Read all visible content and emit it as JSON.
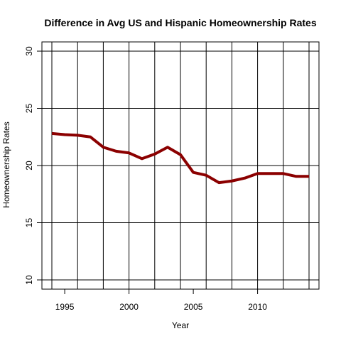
{
  "chart_data": {
    "type": "line",
    "title": "Difference in Avg US and Hispanic Homeownership Rates",
    "xlabel": "Year",
    "ylabel": "Homeownership Rates",
    "xlim": [
      1994,
      2014
    ],
    "ylim": [
      10,
      30
    ],
    "x_ticks": [
      1995,
      2000,
      2005,
      2010
    ],
    "y_ticks": [
      10,
      15,
      20,
      25,
      30
    ],
    "grid": true,
    "grid_x": [
      1994,
      1996,
      1998,
      2000,
      2002,
      2004,
      2006,
      2008,
      2010,
      2012,
      2014
    ],
    "grid_y": [
      10,
      15,
      20,
      25,
      30
    ],
    "series": [
      {
        "color": "#8b0000",
        "x": [
          1994,
          1995,
          1996,
          1997,
          1998,
          1999,
          2000,
          2001,
          2002,
          2003,
          2004,
          2005,
          2006,
          2007,
          2008,
          2009,
          2010,
          2011,
          2012,
          2013,
          2014
        ],
        "y": [
          22.8,
          22.7,
          22.65,
          22.5,
          21.6,
          21.25,
          21.1,
          20.6,
          21.0,
          21.6,
          20.95,
          19.4,
          19.15,
          18.5,
          18.65,
          18.9,
          19.3,
          19.3,
          19.3,
          19.05,
          19.05
        ]
      }
    ]
  }
}
